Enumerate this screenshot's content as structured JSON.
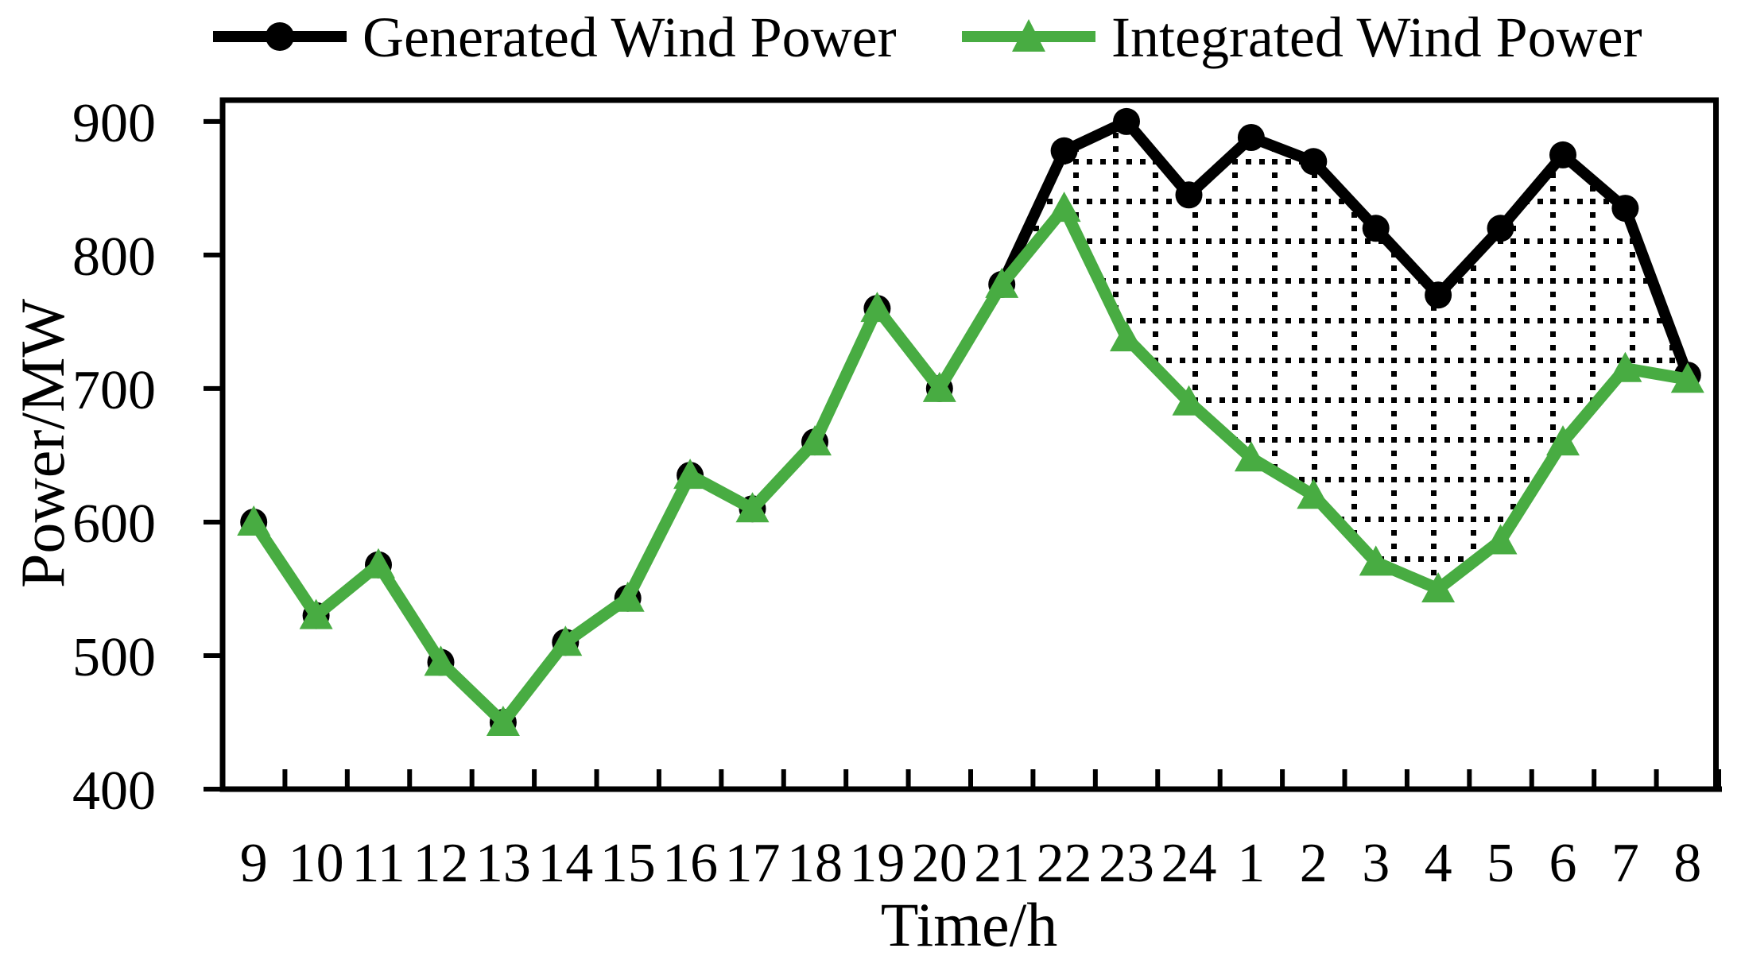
{
  "legend": {
    "items": [
      {
        "label": "Generated Wind Power",
        "series": "generated",
        "marker": "circle"
      },
      {
        "label": "Integrated Wind Power",
        "series": "integrated",
        "marker": "triangle"
      }
    ]
  },
  "colors": {
    "generated": "#000000",
    "integrated": "#48AC42",
    "axis": "#000000",
    "hatch": "#000000",
    "background": "#ffffff"
  },
  "chart_data": {
    "type": "line",
    "title": "",
    "xlabel": "Time/h",
    "ylabel": "Power/MW",
    "categories": [
      "9",
      "10",
      "11",
      "12",
      "13",
      "14",
      "15",
      "16",
      "17",
      "18",
      "19",
      "20",
      "21",
      "22",
      "23",
      "24",
      "1",
      "2",
      "3",
      "4",
      "5",
      "6",
      "7",
      "8"
    ],
    "series": [
      {
        "name": "Generated Wind Power",
        "marker": "circle",
        "color": "#000000",
        "values": [
          600,
          530,
          568,
          495,
          450,
          510,
          543,
          635,
          610,
          660,
          760,
          700,
          778,
          878,
          900,
          845,
          888,
          870,
          820,
          770,
          820,
          875,
          835,
          710
        ]
      },
      {
        "name": "Integrated Wind Power",
        "marker": "triangle",
        "color": "#48AC42",
        "values": [
          600,
          530,
          568,
          495,
          450,
          510,
          543,
          635,
          610,
          660,
          760,
          700,
          778,
          835,
          738,
          690,
          648,
          620,
          570,
          550,
          586,
          660,
          715,
          707
        ]
      }
    ],
    "ylim": [
      400,
      916
    ],
    "yticks": [
      400,
      500,
      600,
      700,
      800,
      900
    ],
    "grid": "off",
    "legend_position": "top",
    "fill_between": {
      "series_a": 0,
      "series_b": 1,
      "from_index": 12,
      "to_index": 23,
      "pattern": "dotted-grid"
    }
  }
}
